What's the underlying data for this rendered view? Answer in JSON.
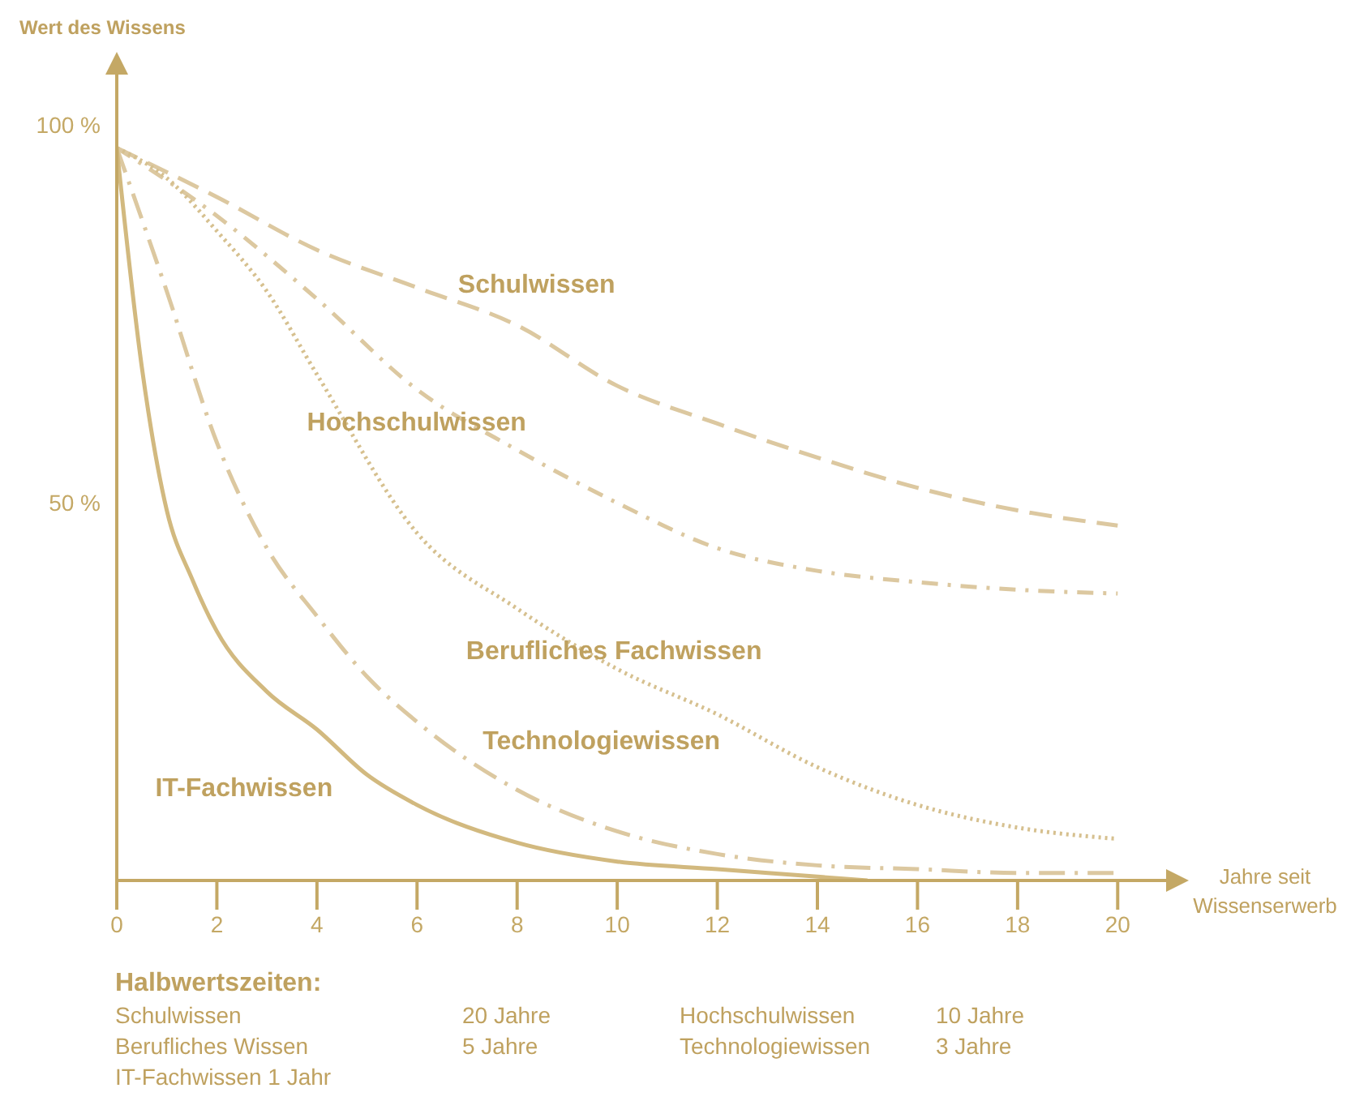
{
  "chart_data": {
    "type": "line",
    "ylabel": "Wert des Wissens",
    "xlabel": "Jahre seit Wissenserwerb",
    "xlim": [
      0,
      21
    ],
    "xticks": [
      0,
      2,
      4,
      6,
      8,
      10,
      12,
      14,
      16,
      18,
      20
    ],
    "ylim": [
      0,
      108
    ],
    "yticks": [
      {
        "value": 50,
        "label": "50 %"
      },
      {
        "value": 100,
        "label": "100 %"
      }
    ],
    "grid": false,
    "legend": false,
    "series": [
      {
        "name": "Schulwissen",
        "color": "#dcc8a0",
        "line_style": "dashed",
        "x": [
          0,
          2,
          4,
          6,
          8,
          10,
          12,
          14,
          16,
          18,
          20
        ],
        "values": [
          97,
          90.5,
          83.5,
          78.5,
          73.5,
          65.5,
          60.5,
          56,
          52,
          49,
          47
        ]
      },
      {
        "name": "Hochschulwissen",
        "color": "#dcc8a0",
        "line_style": "dashdot",
        "x": [
          0,
          2,
          4,
          6,
          8,
          10,
          12,
          14,
          16,
          18,
          20
        ],
        "values": [
          97,
          88,
          77,
          65,
          57,
          50,
          44,
          41,
          39.5,
          38.5,
          38
        ]
      },
      {
        "name": "Berufliches Fachwissen",
        "color": "#d6c08f",
        "line_style": "dotted",
        "x": [
          0,
          1,
          2,
          3,
          4,
          6,
          8,
          10,
          12,
          14,
          16,
          18,
          20
        ],
        "values": [
          97,
          93,
          86,
          78,
          67,
          46,
          36,
          28,
          22,
          15,
          10,
          7,
          5.5
        ]
      },
      {
        "name": "Technologiewissen",
        "color": "#dcc8a0",
        "line_style": "longdashdot",
        "x": [
          0,
          1,
          2,
          3,
          4,
          5,
          6,
          8,
          10,
          12,
          14,
          16,
          18,
          20
        ],
        "values": [
          97,
          78,
          58,
          44,
          35,
          27,
          21,
          12,
          6.5,
          3.5,
          2,
          1.5,
          1,
          1
        ]
      },
      {
        "name": "IT-Fachwissen",
        "color": "#d2b97f",
        "line_style": "solid",
        "x": [
          0,
          0.5,
          1,
          1.5,
          2,
          3,
          4,
          5,
          6,
          8,
          10,
          12,
          14,
          15
        ],
        "values": [
          97,
          68,
          49,
          40,
          33,
          25,
          20,
          14,
          10,
          5,
          2.5,
          1.5,
          0.5,
          0
        ]
      }
    ],
    "annotations": [
      "Halbwertszeiten:",
      "Schulwissen",
      "20 Jahre",
      "Hochschulwissen",
      "10 Jahre",
      "Berufliches Wissen",
      "5 Jahre",
      "Technologiewissen",
      "3 Jahre",
      "IT-Fachwissen 1 Jahr"
    ]
  }
}
